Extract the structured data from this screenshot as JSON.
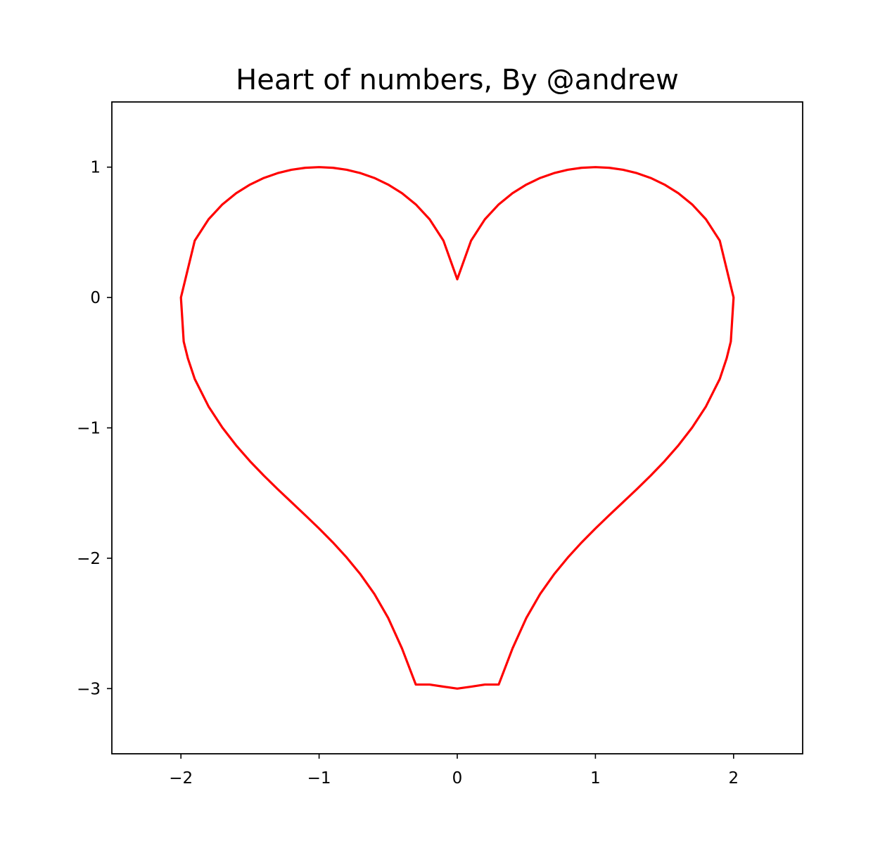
{
  "chart_data": {
    "type": "line",
    "title": "Heart of numbers, By @andrew",
    "xlabel": "",
    "ylabel": "",
    "xlim": [
      -2.5,
      2.5
    ],
    "ylim": [
      -3.5,
      1.5
    ],
    "xticks": [
      -2,
      -1,
      0,
      1,
      2
    ],
    "xtick_labels": [
      "−2",
      "−1",
      "0",
      "1",
      "2"
    ],
    "yticks": [
      -3,
      -2,
      -1,
      0,
      1
    ],
    "ytick_labels": [
      "−3",
      "−2",
      "−1",
      "0",
      "1"
    ],
    "grid": false,
    "series": [
      {
        "color": "#ff0000",
        "x": [
          0.0,
          0.1,
          0.2,
          0.3,
          0.4,
          0.5,
          0.6,
          0.7,
          0.8,
          0.9,
          1.0,
          1.1,
          1.2,
          1.3,
          1.4,
          1.5,
          1.6,
          1.7,
          1.8,
          1.9,
          2.0,
          2.0,
          1.98,
          1.95,
          1.9,
          1.8,
          1.7,
          1.6,
          1.5,
          1.4,
          1.3,
          1.2,
          1.1,
          1.0,
          0.9,
          0.8,
          0.7,
          0.6,
          0.5,
          0.4,
          0.3,
          0.2,
          0.1,
          0.0,
          -0.1,
          -0.2,
          -0.3,
          -0.4,
          -0.5,
          -0.6,
          -0.7,
          -0.8,
          -0.9,
          -1.0,
          -1.1,
          -1.2,
          -1.3,
          -1.4,
          -1.5,
          -1.6,
          -1.7,
          -1.8,
          -1.9,
          -1.95,
          -1.98,
          -2.0,
          -2.0,
          -1.9,
          -1.8,
          -1.7,
          -1.6,
          -1.5,
          -1.4,
          -1.3,
          -1.2,
          -1.1,
          -1.0,
          -0.9,
          -0.8,
          -0.7,
          -0.6,
          -0.5,
          -0.4,
          -0.3,
          -0.2,
          -0.1,
          0.0
        ],
        "y": [
          0.14,
          0.436,
          0.6,
          0.714,
          0.8,
          0.866,
          0.917,
          0.954,
          0.98,
          0.995,
          1.0,
          0.995,
          0.98,
          0.954,
          0.917,
          0.866,
          0.8,
          0.714,
          0.6,
          0.436,
          0.0,
          0.0,
          -0.338,
          -0.466,
          -0.625,
          -0.836,
          -0.998,
          -1.135,
          -1.256,
          -1.366,
          -1.47,
          -1.57,
          -1.67,
          -1.772,
          -1.879,
          -1.995,
          -2.124,
          -2.274,
          -2.458,
          -2.692,
          -2.969,
          -2.969,
          -2.985,
          -3.0,
          -2.985,
          -2.969,
          -2.969,
          -2.692,
          -2.458,
          -2.274,
          -2.124,
          -1.995,
          -1.879,
          -1.772,
          -1.67,
          -1.57,
          -1.47,
          -1.366,
          -1.256,
          -1.135,
          -0.998,
          -0.836,
          -0.625,
          -0.466,
          -0.338,
          0.0,
          0.0,
          0.436,
          0.6,
          0.714,
          0.8,
          0.866,
          0.917,
          0.954,
          0.98,
          0.995,
          1.0,
          0.995,
          0.98,
          0.954,
          0.917,
          0.866,
          0.8,
          0.714,
          0.6,
          0.436,
          0.14
        ]
      }
    ]
  }
}
